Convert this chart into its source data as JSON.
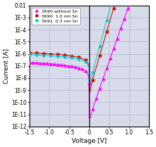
{
  "title": "",
  "xlabel": "Voltage [V]",
  "ylabel": "Current [A]",
  "xlim": [
    -1.5,
    1.5
  ],
  "background_color": "#ffffff",
  "grid_color": "#b0b4cc",
  "ax_facecolor": "#d8dcea",
  "series": [
    {
      "label": "3K90 without Sn",
      "color": "#ff00ff",
      "marker": "^",
      "marker_size": 2.5,
      "I0": 5e-12,
      "n": 1.8,
      "Irev_at_1V": 1.5e-07,
      "rev_exp": 0.6
    },
    {
      "label": "3K90  1.0 nm Sn",
      "color": "#cc1111",
      "marker": "o",
      "marker_size": 2.5,
      "I0": 8e-10,
      "n": 1.5,
      "Irev_at_1V": 1e-06,
      "rev_exp": 0.5
    },
    {
      "label": "3K91  0.3 nm Sn",
      "color": "#00cccc",
      "marker": "*",
      "marker_size": 3.0,
      "I0": 3e-09,
      "n": 1.4,
      "Irev_at_1V": 7e-07,
      "rev_exp": 0.5
    }
  ],
  "tick_labels_y": [
    "1E-12",
    "1E-11",
    "1E-10",
    "1E-9",
    "1E-8",
    "1E-7",
    "1E-6",
    "1E-5",
    "1E-4",
    "1E-3",
    "0.01"
  ],
  "tick_vals_y": [
    1e-12,
    1e-11,
    1e-10,
    1e-09,
    1e-08,
    1e-07,
    1e-06,
    1e-05,
    0.0001,
    0.001,
    0.01
  ],
  "tick_labels_x": [
    "-1.5",
    "-1.0",
    "-0.5",
    "0",
    "0.5",
    "1.0",
    "1.5"
  ],
  "tick_vals_x": [
    -1.5,
    -1.0,
    -0.5,
    0.0,
    0.5,
    1.0,
    1.5
  ],
  "n_markers": [
    35,
    18,
    18
  ]
}
